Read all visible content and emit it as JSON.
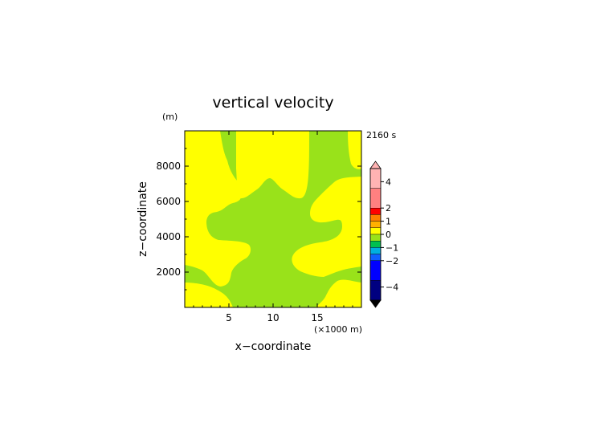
{
  "chart_data": {
    "type": "heatmap",
    "title": "vertical velocity",
    "time_label": "2160 s",
    "xlabel": "x−coordinate",
    "x_unit": "(×1000 m)",
    "ylabel": "z−coordinate",
    "y_unit": "(m)",
    "xlim": [
      0,
      20
    ],
    "ylim": [
      0,
      10000
    ],
    "x_ticks": [
      "5",
      "10",
      "15"
    ],
    "y_ticks": [
      "2000",
      "4000",
      "6000",
      "8000"
    ],
    "x_tick_values": [
      5,
      10,
      15
    ],
    "y_tick_values": [
      2000,
      4000,
      6000,
      8000
    ],
    "grid": false,
    "field_colors": {
      "negative_weak": "#99e21a",
      "positive_weak": "#ffff00"
    },
    "colorbar": {
      "tick_labels": [
        "4",
        "2",
        "1",
        "0",
        "−1",
        "−2",
        "−4"
      ],
      "tick_values": [
        4,
        2,
        1,
        0,
        -1,
        -2,
        -4
      ],
      "extend": "both",
      "levels": [
        {
          "lo": 3.5,
          "hi": 5.0,
          "color": "#ffb3b3"
        },
        {
          "lo": 2.0,
          "hi": 3.5,
          "color": "#ff8080"
        },
        {
          "lo": 1.5,
          "hi": 2.0,
          "color": "#ff0000"
        },
        {
          "lo": 1.0,
          "hi": 1.5,
          "color": "#ff7f00"
        },
        {
          "lo": 0.5,
          "hi": 1.0,
          "color": "#ffb000"
        },
        {
          "lo": 0.0,
          "hi": 0.5,
          "color": "#ffff00"
        },
        {
          "lo": -0.5,
          "hi": 0.0,
          "color": "#99e21a"
        },
        {
          "lo": -1.0,
          "hi": -0.5,
          "color": "#00c050"
        },
        {
          "lo": -1.5,
          "hi": -1.0,
          "color": "#00b0e0"
        },
        {
          "lo": -2.0,
          "hi": -1.5,
          "color": "#1060ff"
        },
        {
          "lo": -3.5,
          "hi": -2.0,
          "color": "#0000ff"
        },
        {
          "lo": -5.0,
          "hi": -3.5,
          "color": "#000080"
        }
      ],
      "over_color": "#ffb3b3",
      "under_color": "#000000"
    }
  }
}
